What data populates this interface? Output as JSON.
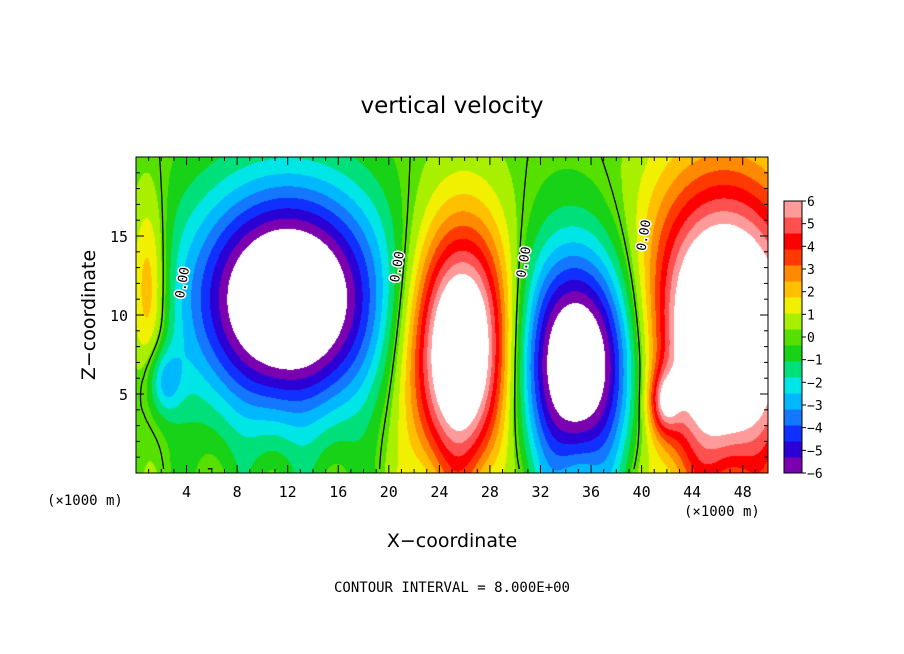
{
  "chart_data": {
    "type": "heatmap",
    "title": "vertical velocity",
    "xlabel": "X−coordinate",
    "ylabel": "Z−coordinate",
    "x_unit_label_left": "(×1000 m)",
    "x_unit_label_right": "(×1000 m)",
    "footer": "CONTOUR INTERVAL = 8.000E+00",
    "x_range": [
      0,
      50
    ],
    "y_range": [
      0,
      20
    ],
    "x_ticks": [
      4,
      8,
      12,
      16,
      20,
      24,
      28,
      32,
      36,
      40,
      44,
      48
    ],
    "x_tick_labels": [
      "4",
      "8",
      "12",
      "16",
      "20",
      "24",
      "28",
      "32",
      "36",
      "40",
      "44",
      "48"
    ],
    "y_ticks": [
      5,
      10,
      15
    ],
    "y_tick_labels": [
      "5",
      "10",
      "15"
    ],
    "colorbar": {
      "range": [
        -6,
        6
      ],
      "ticks": [
        6,
        5,
        4,
        3,
        2,
        1,
        0,
        -1,
        -2,
        -3,
        -4,
        -5,
        -6
      ],
      "tick_labels": [
        "6",
        "5",
        "4",
        "3",
        "2",
        "1",
        "0",
        "−1",
        "−2",
        "−3",
        "−4",
        "−5",
        "−6"
      ],
      "colors": [
        "#7a00b0",
        "#2a00d4",
        "#1030ff",
        "#1478ff",
        "#00b8ff",
        "#00e6e6",
        "#00e07a",
        "#18d218",
        "#56e000",
        "#a8f000",
        "#f0f000",
        "#ffc000",
        "#ff8a00",
        "#ff3a00",
        "#ff0000",
        "#ff5050",
        "#ff9a9a"
      ]
    },
    "zero_contour_label": "0.00",
    "cells": [
      {
        "xc": 1.0,
        "zc": 11.5,
        "rx": 1.5,
        "rz": 6.0,
        "w": 3.0
      },
      {
        "xc": 2.2,
        "zc": 5.8,
        "rx": 1.4,
        "rz": 2.2,
        "w": -2.5
      },
      {
        "xc": 12.0,
        "zc": 11.0,
        "rx": 7.5,
        "rz": 7.0,
        "w": -9.0
      },
      {
        "xc": 25.8,
        "zc": 7.8,
        "rx": 4.2,
        "rz": 7.8,
        "w": 9.5
      },
      {
        "xc": 35.0,
        "zc": 7.0,
        "rx": 5.2,
        "rz": 7.2,
        "w": -8.5
      },
      {
        "xc": 46.5,
        "zc": 9.0,
        "rx": 6.5,
        "rz": 9.5,
        "w": 10.0
      },
      {
        "xc": 41.8,
        "zc": 4.5,
        "rx": 1.2,
        "rz": 2.0,
        "w": 3.5
      }
    ]
  }
}
